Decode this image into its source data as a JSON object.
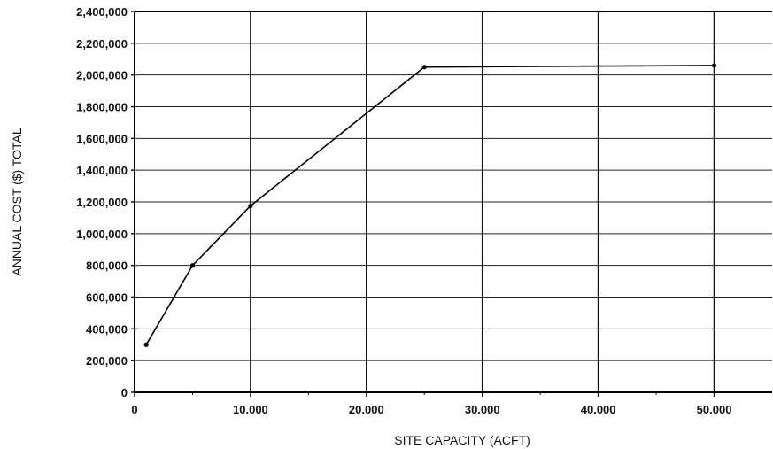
{
  "chart_data": {
    "type": "line",
    "title": "",
    "xlabel": "SITE CAPACITY (ACFT)",
    "ylabel": "ANNUAL COST ($) TOTAL",
    "xlim": [
      0,
      55000
    ],
    "ylim": [
      0,
      2400000
    ],
    "x_ticks": [
      0,
      10000,
      20000,
      30000,
      40000,
      50000
    ],
    "x_tick_labels": [
      "0",
      "10.000",
      "20.000",
      "30.000",
      "40.000",
      "50.000"
    ],
    "y_ticks": [
      0,
      200000,
      400000,
      600000,
      800000,
      1000000,
      1200000,
      1400000,
      1600000,
      1800000,
      2000000,
      2200000,
      2400000
    ],
    "y_tick_labels": [
      "0",
      "200,000",
      "400,000",
      "600,000",
      "800,000",
      "1,000,000",
      "1,200,000",
      "1,400,000",
      "1,600,000",
      "1,800,000",
      "2,000,000",
      "2,200,000",
      "2,400,000"
    ],
    "grid": true,
    "legend": "none",
    "series": [
      {
        "x": [
          1000,
          5000,
          10000,
          25000,
          50000
        ],
        "y": [
          300000,
          800000,
          1175000,
          2050000,
          2060000
        ]
      }
    ]
  }
}
